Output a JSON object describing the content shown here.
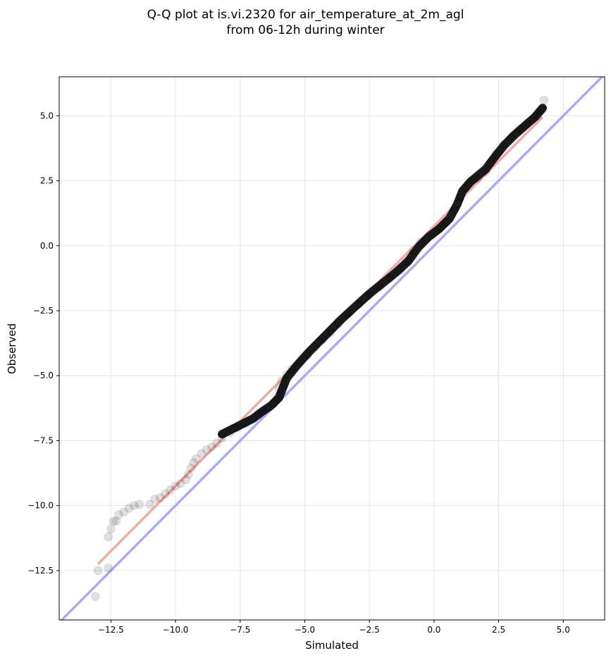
{
  "chart_data": {
    "type": "scatter",
    "title_line1": "Q-Q plot at is.vi.2320 for air_temperature_at_2m_agl",
    "title_line2": "from 06-12h during winter",
    "xlabel": "Simulated",
    "ylabel": "Observed",
    "xlim": [
      -14.5,
      6.6
    ],
    "ylim": [
      -14.4,
      6.5
    ],
    "xticks": [
      -12.5,
      -10.0,
      -7.5,
      -5.0,
      -2.5,
      0.0,
      2.5,
      5.0
    ],
    "yticks": [
      -12.5,
      -10.0,
      -7.5,
      -5.0,
      -2.5,
      0.0,
      2.5,
      5.0
    ],
    "xtick_labels": [
      "−12.5",
      "−10.0",
      "−7.5",
      "−5.0",
      "−2.5",
      "0.0",
      "2.5",
      "5.0"
    ],
    "ytick_labels": [
      "−12.5",
      "−10.0",
      "−7.5",
      "−5.0",
      "−2.5",
      "0.0",
      "2.5",
      "5.0"
    ],
    "grid": true,
    "colors": {
      "identity_line": "#aaaaf5",
      "fit_line": "#f4a9a9",
      "points": "#000000",
      "grid": "#e6e6e6"
    },
    "identity_line": {
      "x": [
        -14.5,
        6.6
      ],
      "y": [
        -14.5,
        6.6
      ]
    },
    "fit_line": {
      "x": [
        -13.0,
        4.2
      ],
      "y": [
        -12.25,
        4.95
      ]
    },
    "quantile_curve": {
      "x": [
        -8.2,
        -7.6,
        -7.0,
        -6.6,
        -6.3,
        -6.0,
        -5.7,
        -5.3,
        -4.8,
        -4.2,
        -3.6,
        -3.0,
        -2.5,
        -2.0,
        -1.5,
        -1.0,
        -0.6,
        -0.2,
        0.2,
        0.6,
        0.9,
        1.1,
        1.4,
        1.7,
        2.0,
        2.3,
        2.7,
        3.1,
        3.5,
        3.9,
        4.2
      ],
      "y": [
        -7.25,
        -6.95,
        -6.65,
        -6.35,
        -6.15,
        -5.85,
        -5.1,
        -4.6,
        -4.05,
        -3.45,
        -2.85,
        -2.3,
        -1.85,
        -1.45,
        -1.05,
        -0.6,
        -0.05,
        0.35,
        0.65,
        1.05,
        1.6,
        2.1,
        2.45,
        2.7,
        2.95,
        3.35,
        3.85,
        4.25,
        4.6,
        4.95,
        5.3
      ]
    },
    "points": [
      {
        "x": -13.1,
        "y": -13.5
      },
      {
        "x": -13.0,
        "y": -12.5
      },
      {
        "x": -12.6,
        "y": -12.4
      },
      {
        "x": -12.6,
        "y": -11.2
      },
      {
        "x": -12.5,
        "y": -10.9
      },
      {
        "x": -12.4,
        "y": -10.6
      },
      {
        "x": -12.3,
        "y": -10.6
      },
      {
        "x": -12.2,
        "y": -10.35
      },
      {
        "x": -12.0,
        "y": -10.25
      },
      {
        "x": -11.8,
        "y": -10.1
      },
      {
        "x": -11.6,
        "y": -10.0
      },
      {
        "x": -11.4,
        "y": -9.95
      },
      {
        "x": -11.0,
        "y": -9.95
      },
      {
        "x": -10.8,
        "y": -9.75
      },
      {
        "x": -10.6,
        "y": -9.7
      },
      {
        "x": -10.4,
        "y": -9.55
      },
      {
        "x": -10.2,
        "y": -9.4
      },
      {
        "x": -10.0,
        "y": -9.25
      },
      {
        "x": -9.8,
        "y": -9.15
      },
      {
        "x": -9.6,
        "y": -9.0
      },
      {
        "x": -9.5,
        "y": -8.8
      },
      {
        "x": -9.4,
        "y": -8.55
      },
      {
        "x": -9.3,
        "y": -8.35
      },
      {
        "x": -9.2,
        "y": -8.2
      },
      {
        "x": -9.0,
        "y": -8.0
      },
      {
        "x": -8.8,
        "y": -7.85
      },
      {
        "x": -8.6,
        "y": -7.75
      },
      {
        "x": -8.4,
        "y": -7.6
      },
      {
        "x": -8.2,
        "y": -7.4
      },
      {
        "x": -7.9,
        "y": -7.2
      },
      {
        "x": -7.6,
        "y": -7.0
      },
      {
        "x": -7.3,
        "y": -6.85
      },
      {
        "x": -7.0,
        "y": -6.65
      },
      {
        "x": -6.8,
        "y": -6.45
      },
      {
        "x": -6.6,
        "y": -6.35
      },
      {
        "x": -6.4,
        "y": -6.2
      },
      {
        "x": -6.2,
        "y": -6.05
      },
      {
        "x": -6.05,
        "y": -5.8
      },
      {
        "x": -6.0,
        "y": -5.5
      },
      {
        "x": -5.9,
        "y": -5.2
      },
      {
        "x": -5.7,
        "y": -4.95
      },
      {
        "x": -5.5,
        "y": -4.75
      },
      {
        "x": -5.2,
        "y": -4.5
      },
      {
        "x": -4.9,
        "y": -4.2
      },
      {
        "x": -4.6,
        "y": -3.9
      },
      {
        "x": -4.3,
        "y": -3.6
      },
      {
        "x": -4.0,
        "y": -3.35
      },
      {
        "x": -3.7,
        "y": -3.0
      },
      {
        "x": -3.3,
        "y": -2.6
      },
      {
        "x": -2.9,
        "y": -2.25
      },
      {
        "x": -2.5,
        "y": -1.9
      },
      {
        "x": -2.1,
        "y": -1.6
      },
      {
        "x": -1.7,
        "y": -1.25
      },
      {
        "x": -1.3,
        "y": -0.95
      },
      {
        "x": -1.05,
        "y": -0.6
      },
      {
        "x": -0.8,
        "y": -0.2
      },
      {
        "x": -0.5,
        "y": 0.15
      },
      {
        "x": -0.1,
        "y": 0.4
      },
      {
        "x": 0.2,
        "y": 0.65
      },
      {
        "x": 0.5,
        "y": 0.9
      },
      {
        "x": 0.8,
        "y": 1.4
      },
      {
        "x": 1.0,
        "y": 1.85
      },
      {
        "x": 1.2,
        "y": 2.2
      },
      {
        "x": 1.4,
        "y": 2.45
      },
      {
        "x": 1.7,
        "y": 2.6
      },
      {
        "x": 2.0,
        "y": 2.85
      },
      {
        "x": 2.2,
        "y": 3.2
      },
      {
        "x": 2.4,
        "y": 3.55
      },
      {
        "x": 2.7,
        "y": 3.9
      },
      {
        "x": 3.0,
        "y": 4.2
      },
      {
        "x": 3.3,
        "y": 4.5
      },
      {
        "x": 3.6,
        "y": 4.7
      },
      {
        "x": 3.8,
        "y": 4.85
      },
      {
        "x": 4.0,
        "y": 5.0
      },
      {
        "x": 4.15,
        "y": 5.2
      },
      {
        "x": 4.25,
        "y": 5.6
      }
    ]
  }
}
